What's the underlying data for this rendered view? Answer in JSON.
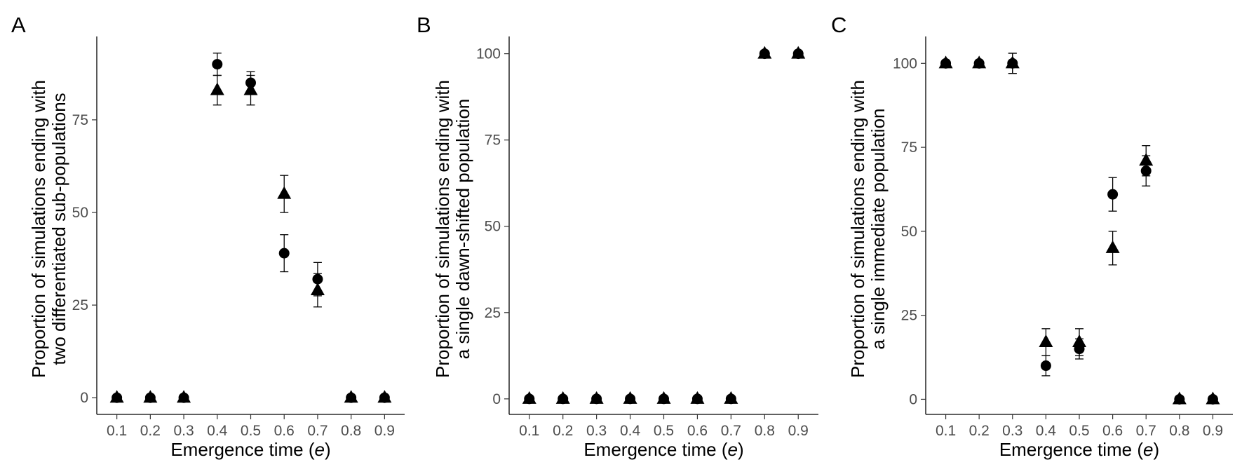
{
  "chart_data": [
    {
      "type": "scatter",
      "panel": "A",
      "xlabel_main": "Emergence time (",
      "xlabel_var": "e",
      "xlabel_end": ")",
      "ylabel_lines": [
        "Proportion of simulations ending with",
        "two differentiated sub-populations"
      ],
      "x": [
        0.1,
        0.2,
        0.3,
        0.4,
        0.5,
        0.6,
        0.7,
        0.8,
        0.9
      ],
      "x_ticks": [
        "0.1",
        "0.2",
        "0.3",
        "0.4",
        "0.5",
        "0.6",
        "0.7",
        "0.8",
        "0.9"
      ],
      "y_ticks": [
        0,
        25,
        50,
        75
      ],
      "ylim": [
        -4.5,
        97.5
      ],
      "series": [
        {
          "marker": "circle",
          "values": [
            0,
            0,
            0,
            90,
            85,
            39,
            32,
            0,
            0
          ],
          "errors": [
            0,
            0,
            0,
            3,
            3,
            5,
            4.5,
            0,
            0
          ]
        },
        {
          "marker": "triangle",
          "values": [
            0,
            0,
            0,
            83,
            83,
            55,
            29,
            0,
            0
          ],
          "errors": [
            0,
            0,
            0,
            4,
            4,
            5,
            4.5,
            0,
            0
          ]
        }
      ]
    },
    {
      "type": "scatter",
      "panel": "B",
      "xlabel_main": "Emergence time (",
      "xlabel_var": "e",
      "xlabel_end": ")",
      "ylabel_lines": [
        "Proportion of simulations ending with",
        "a single dawn-shifted population"
      ],
      "x": [
        0.1,
        0.2,
        0.3,
        0.4,
        0.5,
        0.6,
        0.7,
        0.8,
        0.9
      ],
      "x_ticks": [
        "0.1",
        "0.2",
        "0.3",
        "0.4",
        "0.5",
        "0.6",
        "0.7",
        "0.8",
        "0.9"
      ],
      "y_ticks": [
        0,
        25,
        50,
        75,
        100
      ],
      "ylim": [
        -4.5,
        105
      ],
      "series": [
        {
          "marker": "circle",
          "values": [
            0,
            0,
            0,
            0,
            0,
            0,
            0,
            100,
            100
          ],
          "errors": [
            0,
            0,
            0,
            0,
            0,
            0,
            0,
            0,
            0
          ]
        },
        {
          "marker": "triangle",
          "values": [
            0,
            0,
            0,
            0,
            0,
            0,
            0,
            100,
            100
          ],
          "errors": [
            0,
            0,
            0,
            0,
            0,
            0,
            0,
            0,
            0
          ]
        }
      ]
    },
    {
      "type": "scatter",
      "panel": "C",
      "xlabel_main": "Emergence time (",
      "xlabel_var": "e",
      "xlabel_end": ")",
      "ylabel_lines": [
        "Proportion of simulations ending with",
        "a single immediate population"
      ],
      "x": [
        0.1,
        0.2,
        0.3,
        0.4,
        0.5,
        0.6,
        0.7,
        0.8,
        0.9
      ],
      "x_ticks": [
        "0.1",
        "0.2",
        "0.3",
        "0.4",
        "0.5",
        "0.6",
        "0.7",
        "0.8",
        "0.9"
      ],
      "y_ticks": [
        0,
        25,
        50,
        75,
        100
      ],
      "ylim": [
        -4.5,
        108
      ],
      "series": [
        {
          "marker": "circle",
          "values": [
            100,
            100,
            100,
            10,
            15,
            61,
            68,
            0,
            0
          ],
          "errors": [
            0,
            0,
            3,
            3,
            3,
            5,
            4.5,
            0,
            0
          ]
        },
        {
          "marker": "triangle",
          "values": [
            100,
            100,
            100,
            17,
            17,
            45,
            71,
            0,
            0
          ],
          "errors": [
            0,
            0,
            3,
            4,
            4,
            5,
            4.5,
            0,
            0
          ]
        }
      ]
    }
  ]
}
